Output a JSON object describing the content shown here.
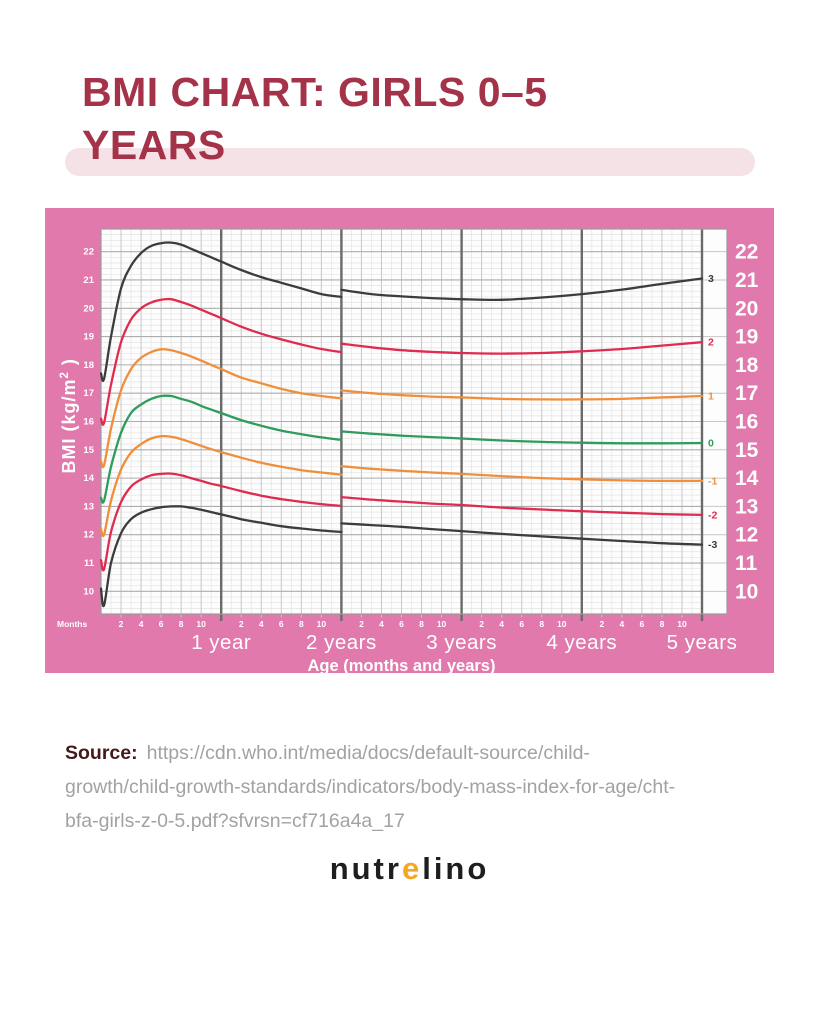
{
  "page": {
    "title_line1": "BMI CHART: GIRLS 0–5",
    "title_line2": "YEARS",
    "source_label": "Source:",
    "source_url": "https://cdn.who.int/media/docs/default-source/child-growth/child-growth-standards/indicators/body-mass-index-for-age/cht-bfa-girls-z-0-5.pdf?sfvrsn=cf716a4a_17",
    "logo": {
      "part1": "nutr",
      "accent": "e",
      "part2": "lino"
    },
    "colors": {
      "title": "#A43349",
      "title_highlight": "#F4E2E6",
      "source_label": "#441A1A",
      "source_url": "#A3A2A2",
      "logo_text": "#1E1E1E",
      "logo_accent": "#F5A623"
    }
  },
  "chart_data": {
    "type": "line",
    "title": "",
    "xlabel": "Age (months and years)",
    "ylabel_main": "BMI (kg/m",
    "ylabel_sup": "2",
    "ylabel_end": " )",
    "x_unit_label": "Months",
    "xlim_months": [
      0,
      60
    ],
    "ylim": [
      9.2,
      22.8
    ],
    "y_major_ticks": [
      22,
      21,
      20,
      19,
      18,
      17,
      16,
      15,
      14,
      13,
      12,
      11,
      10
    ],
    "y_minor_step": 0.2,
    "x_month_tick_labels": [
      2,
      4,
      6,
      8,
      10
    ],
    "year_labels": [
      "1 year",
      "2 years",
      "3 years",
      "4 years",
      "5 years"
    ],
    "year_line_months": [
      12,
      24,
      36,
      48,
      60
    ],
    "grid": true,
    "legend_position": "curve-end-right",
    "background": "#E179AC",
    "plot_background": "#FDFDFD",
    "grid_minor_color": "#E4E4E4",
    "grid_mid_color": "#C7C7C7",
    "grid_major_color": "#ADADAD",
    "year_line_color": "#6A6A6A",
    "border_color": "#9B9B9B",
    "axis_text_color": "#FFFFFF",
    "series": [
      {
        "name": "-3 SD",
        "label": "-3",
        "color": "#3C3C3C",
        "segments": [
          [
            [
              0,
              10.1
            ],
            [
              0.3,
              9.5
            ],
            [
              1,
              11.0
            ],
            [
              2,
              12.05
            ],
            [
              3,
              12.55
            ],
            [
              4,
              12.78
            ],
            [
              5,
              12.9
            ],
            [
              6,
              12.97
            ],
            [
              7,
              13.0
            ],
            [
              8,
              13.0
            ],
            [
              9,
              12.95
            ],
            [
              10,
              12.88
            ],
            [
              11,
              12.8
            ],
            [
              12,
              12.72
            ],
            [
              14,
              12.55
            ],
            [
              16,
              12.42
            ],
            [
              18,
              12.3
            ],
            [
              20,
              12.22
            ],
            [
              22,
              12.15
            ],
            [
              24,
              12.1
            ]
          ],
          [
            [
              24,
              12.4
            ],
            [
              27,
              12.34
            ],
            [
              30,
              12.28
            ],
            [
              33,
              12.2
            ],
            [
              36,
              12.13
            ],
            [
              40,
              12.03
            ],
            [
              44,
              11.94
            ],
            [
              48,
              11.86
            ],
            [
              52,
              11.78
            ],
            [
              56,
              11.7
            ],
            [
              60,
              11.65
            ]
          ]
        ]
      },
      {
        "name": "-2 SD",
        "label": "-2",
        "color": "#E02B50",
        "segments": [
          [
            [
              0,
              11.1
            ],
            [
              0.3,
              10.78
            ],
            [
              1,
              12.1
            ],
            [
              2,
              13.15
            ],
            [
              3,
              13.7
            ],
            [
              4,
              13.95
            ],
            [
              5,
              14.1
            ],
            [
              6,
              14.15
            ],
            [
              7,
              14.16
            ],
            [
              8,
              14.1
            ],
            [
              9,
              14.0
            ],
            [
              10,
              13.9
            ],
            [
              11,
              13.8
            ],
            [
              12,
              13.72
            ],
            [
              14,
              13.54
            ],
            [
              16,
              13.38
            ],
            [
              18,
              13.26
            ],
            [
              20,
              13.16
            ],
            [
              22,
              13.08
            ],
            [
              24,
              13.02
            ]
          ],
          [
            [
              24,
              13.33
            ],
            [
              27,
              13.24
            ],
            [
              30,
              13.17
            ],
            [
              33,
              13.1
            ],
            [
              36,
              13.05
            ],
            [
              40,
              12.96
            ],
            [
              44,
              12.89
            ],
            [
              48,
              12.83
            ],
            [
              52,
              12.78
            ],
            [
              56,
              12.73
            ],
            [
              60,
              12.7
            ]
          ]
        ]
      },
      {
        "name": "-1 SD",
        "label": "-1",
        "color": "#EF8F3C",
        "segments": [
          [
            [
              0,
              12.2
            ],
            [
              0.3,
              12.0
            ],
            [
              1,
              13.2
            ],
            [
              2,
              14.3
            ],
            [
              3,
              14.9
            ],
            [
              4,
              15.2
            ],
            [
              5,
              15.4
            ],
            [
              6,
              15.48
            ],
            [
              7,
              15.46
            ],
            [
              8,
              15.38
            ],
            [
              9,
              15.26
            ],
            [
              10,
              15.14
            ],
            [
              11,
              15.02
            ],
            [
              12,
              14.92
            ],
            [
              14,
              14.72
            ],
            [
              16,
              14.54
            ],
            [
              18,
              14.4
            ],
            [
              20,
              14.28
            ],
            [
              22,
              14.2
            ],
            [
              24,
              14.12
            ]
          ],
          [
            [
              24,
              14.42
            ],
            [
              27,
              14.33
            ],
            [
              30,
              14.26
            ],
            [
              33,
              14.2
            ],
            [
              36,
              14.15
            ],
            [
              40,
              14.07
            ],
            [
              44,
              14.0
            ],
            [
              48,
              13.96
            ],
            [
              52,
              13.92
            ],
            [
              56,
              13.9
            ],
            [
              60,
              13.9
            ]
          ]
        ]
      },
      {
        "name": "Median",
        "label": "0",
        "color": "#2F9C5E",
        "segments": [
          [
            [
              0,
              13.3
            ],
            [
              0.3,
              13.2
            ],
            [
              1,
              14.4
            ],
            [
              2,
              15.6
            ],
            [
              3,
              16.3
            ],
            [
              4,
              16.6
            ],
            [
              5,
              16.8
            ],
            [
              6,
              16.9
            ],
            [
              7,
              16.9
            ],
            [
              8,
              16.8
            ],
            [
              9,
              16.7
            ],
            [
              10,
              16.55
            ],
            [
              11,
              16.42
            ],
            [
              12,
              16.3
            ],
            [
              14,
              16.05
            ],
            [
              16,
              15.85
            ],
            [
              18,
              15.68
            ],
            [
              20,
              15.55
            ],
            [
              22,
              15.44
            ],
            [
              24,
              15.35
            ]
          ],
          [
            [
              24,
              15.65
            ],
            [
              27,
              15.57
            ],
            [
              30,
              15.5
            ],
            [
              33,
              15.45
            ],
            [
              36,
              15.4
            ],
            [
              40,
              15.33
            ],
            [
              44,
              15.28
            ],
            [
              48,
              15.25
            ],
            [
              52,
              15.23
            ],
            [
              56,
              15.23
            ],
            [
              60,
              15.24
            ]
          ]
        ]
      },
      {
        "name": "+1 SD",
        "label": "1",
        "color": "#EF8F3C",
        "segments": [
          [
            [
              0,
              14.6
            ],
            [
              0.3,
              14.45
            ],
            [
              1,
              15.75
            ],
            [
              2,
              17.1
            ],
            [
              3,
              17.85
            ],
            [
              4,
              18.25
            ],
            [
              5,
              18.45
            ],
            [
              6,
              18.55
            ],
            [
              7,
              18.52
            ],
            [
              8,
              18.42
            ],
            [
              9,
              18.3
            ],
            [
              10,
              18.15
            ],
            [
              11,
              18.0
            ],
            [
              12,
              17.85
            ],
            [
              14,
              17.55
            ],
            [
              16,
              17.35
            ],
            [
              18,
              17.15
            ],
            [
              20,
              17.0
            ],
            [
              22,
              16.9
            ],
            [
              24,
              16.82
            ]
          ],
          [
            [
              24,
              17.1
            ],
            [
              27,
              17.0
            ],
            [
              30,
              16.93
            ],
            [
              33,
              16.88
            ],
            [
              36,
              16.85
            ],
            [
              40,
              16.8
            ],
            [
              44,
              16.78
            ],
            [
              48,
              16.78
            ],
            [
              52,
              16.8
            ],
            [
              56,
              16.85
            ],
            [
              60,
              16.9
            ]
          ]
        ]
      },
      {
        "name": "+2 SD",
        "label": "2",
        "color": "#E02B50",
        "segments": [
          [
            [
              0,
              16.1
            ],
            [
              0.3,
              15.95
            ],
            [
              1,
              17.3
            ],
            [
              2,
              18.8
            ],
            [
              3,
              19.6
            ],
            [
              4,
              20.0
            ],
            [
              5,
              20.2
            ],
            [
              6,
              20.3
            ],
            [
              7,
              20.32
            ],
            [
              8,
              20.22
            ],
            [
              9,
              20.1
            ],
            [
              10,
              19.95
            ],
            [
              11,
              19.8
            ],
            [
              12,
              19.65
            ],
            [
              14,
              19.35
            ],
            [
              16,
              19.1
            ],
            [
              18,
              18.9
            ],
            [
              20,
              18.72
            ],
            [
              22,
              18.56
            ],
            [
              24,
              18.45
            ]
          ],
          [
            [
              24,
              18.75
            ],
            [
              27,
              18.62
            ],
            [
              30,
              18.52
            ],
            [
              33,
              18.46
            ],
            [
              36,
              18.42
            ],
            [
              40,
              18.4
            ],
            [
              44,
              18.42
            ],
            [
              48,
              18.48
            ],
            [
              52,
              18.56
            ],
            [
              56,
              18.68
            ],
            [
              60,
              18.8
            ]
          ]
        ]
      },
      {
        "name": "+3 SD",
        "label": "3",
        "color": "#3C3C3C",
        "segments": [
          [
            [
              0,
              17.7
            ],
            [
              0.3,
              17.5
            ],
            [
              1,
              19.0
            ],
            [
              2,
              20.7
            ],
            [
              3,
              21.5
            ],
            [
              4,
              21.95
            ],
            [
              5,
              22.2
            ],
            [
              6,
              22.3
            ],
            [
              7,
              22.32
            ],
            [
              8,
              22.25
            ],
            [
              9,
              22.1
            ],
            [
              10,
              21.95
            ],
            [
              11,
              21.8
            ],
            [
              12,
              21.65
            ],
            [
              14,
              21.35
            ],
            [
              16,
              21.1
            ],
            [
              18,
              20.9
            ],
            [
              20,
              20.7
            ],
            [
              22,
              20.5
            ],
            [
              24,
              20.4
            ]
          ],
          [
            [
              24,
              20.65
            ],
            [
              27,
              20.5
            ],
            [
              30,
              20.42
            ],
            [
              33,
              20.36
            ],
            [
              36,
              20.32
            ],
            [
              40,
              20.3
            ],
            [
              44,
              20.38
            ],
            [
              48,
              20.5
            ],
            [
              52,
              20.66
            ],
            [
              56,
              20.86
            ],
            [
              60,
              21.05
            ]
          ]
        ]
      }
    ]
  }
}
